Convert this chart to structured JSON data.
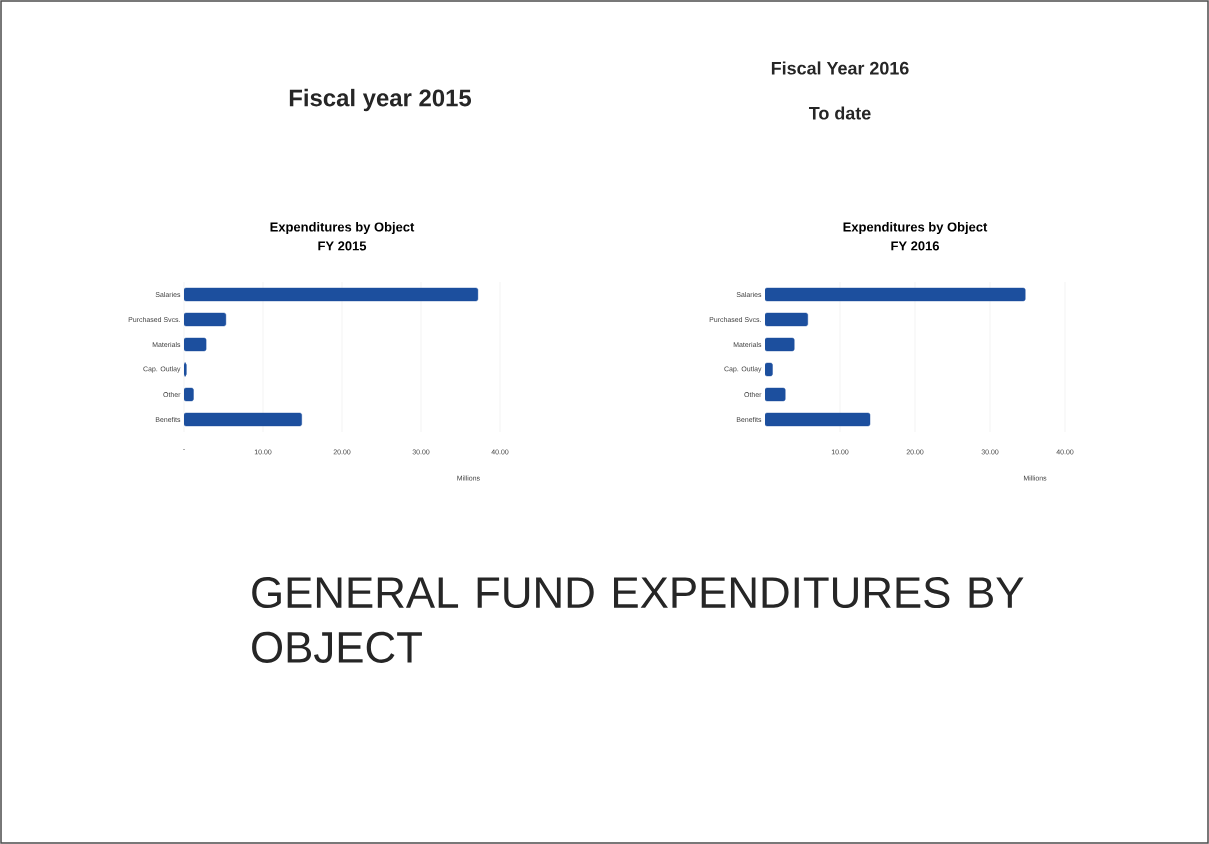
{
  "chart_data": [
    {
      "type": "bar",
      "orientation": "horizontal",
      "title": "Expenditures by Object",
      "subtitle": "FY 2015",
      "xlabel": "Millions",
      "annotations": [
        "Fiscal year 2015",
        "GENERAL FUND EXPENDITURES BY OBJECT"
      ],
      "categories": [
        "Salaries",
        "Purchased Svcs.",
        "Materials",
        "Cap. Outlay",
        "Other",
        "Benefits"
      ],
      "values": [
        37.2,
        5.3,
        2.8,
        0.3,
        1.2,
        14.9
      ],
      "color": "#1c4f9e",
      "xlim": [
        0,
        40
      ],
      "xticks": [
        {
          "value": 0,
          "label": "-"
        },
        {
          "value": 10,
          "label": "10.00"
        },
        {
          "value": 20,
          "label": "20.00"
        },
        {
          "value": 30,
          "label": "30.00"
        },
        {
          "value": 40,
          "label": "40.00"
        }
      ],
      "grid": "x"
    },
    {
      "type": "bar",
      "orientation": "horizontal",
      "title": "Expenditures by Object",
      "subtitle": "FY 2016",
      "xlabel": "Millions",
      "annotations": [
        "Fiscal Year 2016",
        "To date"
      ],
      "categories": [
        "Salaries",
        "Purchased Svcs.",
        "Materials",
        "Cap. Outlay",
        "Other",
        "Benefits"
      ],
      "values": [
        34.7,
        5.7,
        3.9,
        1.0,
        2.7,
        14.0
      ],
      "color": "#1c4f9e",
      "xlim": [
        0,
        40
      ],
      "xticks": [
        {
          "value": 10,
          "label": "10.00"
        },
        {
          "value": 20,
          "label": "20.00"
        },
        {
          "value": 30,
          "label": "30.00"
        },
        {
          "value": 40,
          "label": "40.00"
        }
      ],
      "grid": "x"
    }
  ]
}
